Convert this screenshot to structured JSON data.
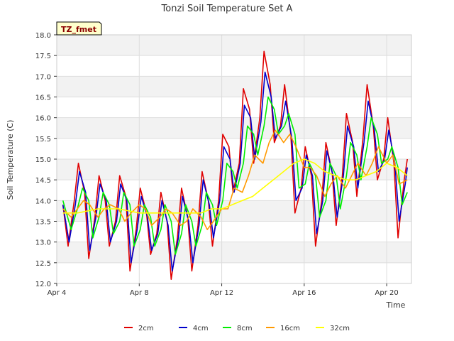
{
  "chart_data": {
    "type": "line",
    "title": "Tonzi Soil Temperature Set A",
    "xlabel": "Time",
    "ylabel": "Soil Temperature (C)",
    "badge": "TZ_fmet",
    "ylim": [
      12.0,
      18.0
    ],
    "xlim": [
      0,
      17.2
    ],
    "x_unit": "days since Apr 4",
    "yticks": [
      "12.0",
      "12.5",
      "13.0",
      "13.5",
      "14.0",
      "14.5",
      "15.0",
      "15.5",
      "16.0",
      "16.5",
      "17.0",
      "17.5",
      "18.0"
    ],
    "xticks": [
      {
        "label": "Apr 4",
        "x": 0
      },
      {
        "label": "Apr 8",
        "x": 4
      },
      {
        "label": "Apr 12",
        "x": 8
      },
      {
        "label": "Apr 16",
        "x": 12
      },
      {
        "label": "Apr 20",
        "x": 16
      }
    ],
    "grid": true,
    "legend_position": "bottom",
    "series": [
      {
        "name": "2cm",
        "color": "#e00000",
        "x": [
          0.3,
          0.55,
          0.85,
          1.05,
          1.35,
          1.55,
          1.85,
          2.05,
          2.35,
          2.55,
          2.85,
          3.05,
          3.35,
          3.55,
          3.85,
          4.05,
          4.35,
          4.55,
          4.85,
          5.05,
          5.35,
          5.55,
          5.85,
          6.05,
          6.35,
          6.55,
          6.85,
          7.05,
          7.35,
          7.55,
          7.85,
          8.05,
          8.35,
          8.55,
          8.85,
          9.05,
          9.35,
          9.55,
          9.85,
          10.05,
          10.35,
          10.55,
          10.85,
          11.05,
          11.35,
          11.55,
          11.85,
          12.05,
          12.35,
          12.55,
          12.85,
          13.05,
          13.35,
          13.55,
          13.85,
          14.05,
          14.35,
          14.55,
          14.85,
          15.05,
          15.35,
          15.55,
          15.85,
          16.05,
          16.35,
          16.55,
          16.85,
          17.0
        ],
        "values": [
          13.9,
          12.9,
          14.0,
          14.9,
          14.2,
          12.6,
          13.6,
          14.6,
          14.0,
          12.9,
          13.5,
          14.6,
          14.1,
          12.3,
          13.3,
          14.3,
          13.7,
          12.7,
          13.2,
          14.2,
          13.5,
          12.1,
          13.1,
          14.3,
          13.6,
          12.3,
          13.4,
          14.7,
          14.0,
          12.9,
          14.0,
          15.6,
          15.3,
          14.2,
          14.9,
          16.7,
          16.2,
          14.9,
          16.0,
          17.6,
          16.8,
          15.4,
          15.8,
          16.8,
          15.6,
          13.7,
          14.3,
          15.3,
          14.6,
          12.9,
          14.0,
          15.4,
          14.7,
          13.4,
          14.6,
          16.1,
          15.4,
          14.1,
          15.5,
          16.8,
          15.8,
          14.5,
          15.0,
          16.0,
          14.9,
          13.1,
          14.5,
          15.0
        ]
      },
      {
        "name": "4cm",
        "color": "#0000cc",
        "x": [
          0.3,
          0.6,
          0.9,
          1.1,
          1.4,
          1.6,
          1.9,
          2.1,
          2.4,
          2.6,
          2.9,
          3.1,
          3.4,
          3.6,
          3.9,
          4.1,
          4.4,
          4.6,
          4.9,
          5.1,
          5.4,
          5.6,
          5.9,
          6.1,
          6.4,
          6.6,
          6.9,
          7.1,
          7.4,
          7.6,
          7.9,
          8.1,
          8.4,
          8.6,
          8.9,
          9.1,
          9.4,
          9.6,
          9.9,
          10.1,
          10.4,
          10.6,
          10.9,
          11.1,
          11.4,
          11.6,
          11.9,
          12.1,
          12.4,
          12.6,
          12.9,
          13.1,
          13.4,
          13.6,
          13.9,
          14.1,
          14.4,
          14.6,
          14.9,
          15.1,
          15.4,
          15.6,
          15.9,
          16.1,
          16.4,
          16.6,
          16.9,
          17.0
        ],
        "values": [
          13.9,
          13.0,
          13.9,
          14.7,
          14.2,
          12.8,
          13.6,
          14.4,
          14.0,
          13.0,
          13.5,
          14.4,
          14.0,
          12.5,
          13.3,
          14.1,
          13.6,
          12.8,
          13.2,
          14.0,
          13.4,
          12.3,
          13.1,
          14.1,
          13.5,
          12.5,
          13.4,
          14.5,
          13.9,
          13.1,
          14.0,
          15.3,
          15.0,
          14.2,
          14.9,
          16.3,
          16.0,
          15.0,
          15.9,
          17.1,
          16.5,
          15.5,
          15.8,
          16.4,
          15.5,
          14.0,
          14.3,
          15.1,
          14.6,
          13.2,
          14.0,
          15.2,
          14.6,
          13.6,
          14.6,
          15.8,
          15.3,
          14.3,
          15.4,
          16.4,
          15.7,
          14.7,
          15.0,
          15.7,
          14.9,
          13.5,
          14.4,
          14.8
        ]
      },
      {
        "name": "8cm",
        "color": "#00ee00",
        "x": [
          0.3,
          0.7,
          1.0,
          1.25,
          1.55,
          1.75,
          2.05,
          2.25,
          2.55,
          2.75,
          3.05,
          3.25,
          3.55,
          3.75,
          4.05,
          4.25,
          4.55,
          4.75,
          5.05,
          5.25,
          5.55,
          5.75,
          6.05,
          6.25,
          6.55,
          6.75,
          7.05,
          7.25,
          7.55,
          7.75,
          8.05,
          8.25,
          8.55,
          8.75,
          9.05,
          9.25,
          9.55,
          9.75,
          10.05,
          10.25,
          10.55,
          10.75,
          11.05,
          11.25,
          11.55,
          11.75,
          12.05,
          12.25,
          12.55,
          12.75,
          13.05,
          13.25,
          13.55,
          13.75,
          14.05,
          14.25,
          14.55,
          14.75,
          15.05,
          15.25,
          15.55,
          15.75,
          16.05,
          16.25,
          16.55,
          16.75,
          17.0
        ],
        "values": [
          14.0,
          13.3,
          13.8,
          14.3,
          14.0,
          13.1,
          13.6,
          14.2,
          13.9,
          13.2,
          13.5,
          14.2,
          13.9,
          12.9,
          13.3,
          13.9,
          13.6,
          12.9,
          13.3,
          13.9,
          13.5,
          12.7,
          13.2,
          13.9,
          13.5,
          12.9,
          13.4,
          14.2,
          13.9,
          13.4,
          14.0,
          14.9,
          14.7,
          14.3,
          14.9,
          15.8,
          15.6,
          15.1,
          15.8,
          16.5,
          16.2,
          15.6,
          15.8,
          16.1,
          15.6,
          14.3,
          14.4,
          14.9,
          14.6,
          13.6,
          14.0,
          14.9,
          14.6,
          13.8,
          14.6,
          15.4,
          15.1,
          14.5,
          15.3,
          16.0,
          15.6,
          14.9,
          15.0,
          15.3,
          14.8,
          13.9,
          14.2
        ]
      },
      {
        "name": "16cm",
        "color": "#ff9900",
        "x": [
          0.3,
          0.7,
          1.0,
          1.3,
          1.6,
          2.0,
          2.3,
          2.6,
          3.0,
          3.3,
          3.6,
          4.0,
          4.3,
          4.6,
          5.0,
          5.3,
          5.6,
          6.0,
          6.3,
          6.6,
          7.0,
          7.3,
          7.6,
          8.0,
          8.3,
          8.6,
          9.0,
          9.3,
          9.6,
          10.0,
          10.3,
          10.6,
          11.0,
          11.3,
          11.6,
          12.0,
          12.3,
          12.6,
          13.0,
          13.3,
          13.6,
          14.0,
          14.3,
          14.6,
          15.0,
          15.3,
          15.6,
          16.0,
          16.3,
          16.6,
          17.0
        ],
        "values": [
          13.8,
          13.6,
          13.8,
          14.0,
          13.9,
          13.6,
          13.8,
          13.9,
          13.8,
          13.5,
          13.7,
          13.9,
          13.8,
          13.4,
          13.6,
          13.8,
          13.7,
          13.4,
          13.5,
          13.8,
          13.6,
          13.3,
          13.5,
          13.8,
          13.8,
          14.3,
          14.2,
          14.6,
          15.1,
          14.9,
          15.4,
          15.7,
          15.4,
          15.6,
          15.3,
          14.8,
          14.8,
          14.6,
          14.1,
          14.4,
          14.6,
          14.3,
          14.6,
          14.9,
          14.6,
          14.9,
          15.3,
          14.9,
          15.1,
          14.4,
          14.5
        ]
      },
      {
        "name": "32cm",
        "color": "#ffff00",
        "x": [
          0.3,
          1.0,
          2.0,
          3.0,
          4.0,
          5.0,
          6.0,
          7.0,
          7.5,
          8.0,
          8.5,
          9.0,
          9.5,
          10.0,
          10.5,
          11.0,
          11.5,
          12.0,
          12.5,
          13.0,
          13.5,
          14.0,
          14.5,
          15.0,
          15.5,
          16.0,
          16.5,
          17.0
        ],
        "values": [
          13.7,
          13.7,
          13.8,
          13.8,
          13.7,
          13.7,
          13.7,
          13.7,
          13.8,
          13.8,
          13.9,
          14.0,
          14.1,
          14.3,
          14.5,
          14.7,
          14.9,
          15.0,
          14.9,
          14.7,
          14.6,
          14.5,
          14.5,
          14.6,
          14.7,
          14.9,
          14.8,
          14.6
        ]
      }
    ]
  }
}
